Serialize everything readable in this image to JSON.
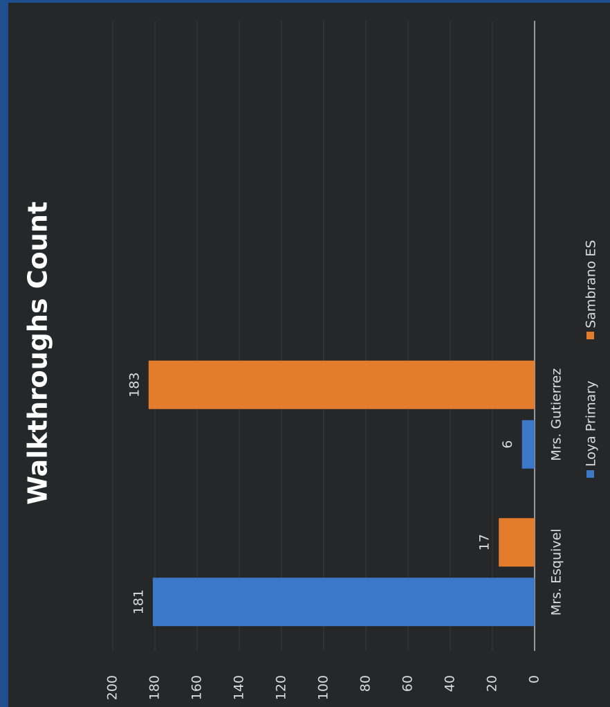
{
  "chart_data": {
    "type": "bar",
    "title": "Walkthroughs  Count",
    "categories": [
      "Mrs. Esquivel",
      "Mrs. Gutierrez",
      null,
      null
    ],
    "series": [
      {
        "name": "Loya Primary",
        "color": "#3b79c8",
        "values": [
          181,
          6,
          null,
          null
        ]
      },
      {
        "name": "Sambrano ES",
        "color": "#e37c2c",
        "values": [
          17,
          183,
          null,
          null
        ]
      }
    ],
    "ylim": [
      0,
      200
    ],
    "yticks": [
      0,
      20,
      40,
      60,
      80,
      100,
      120,
      140,
      160,
      180,
      200
    ],
    "grid": true,
    "legend": "bottom",
    "data_labels": true
  }
}
